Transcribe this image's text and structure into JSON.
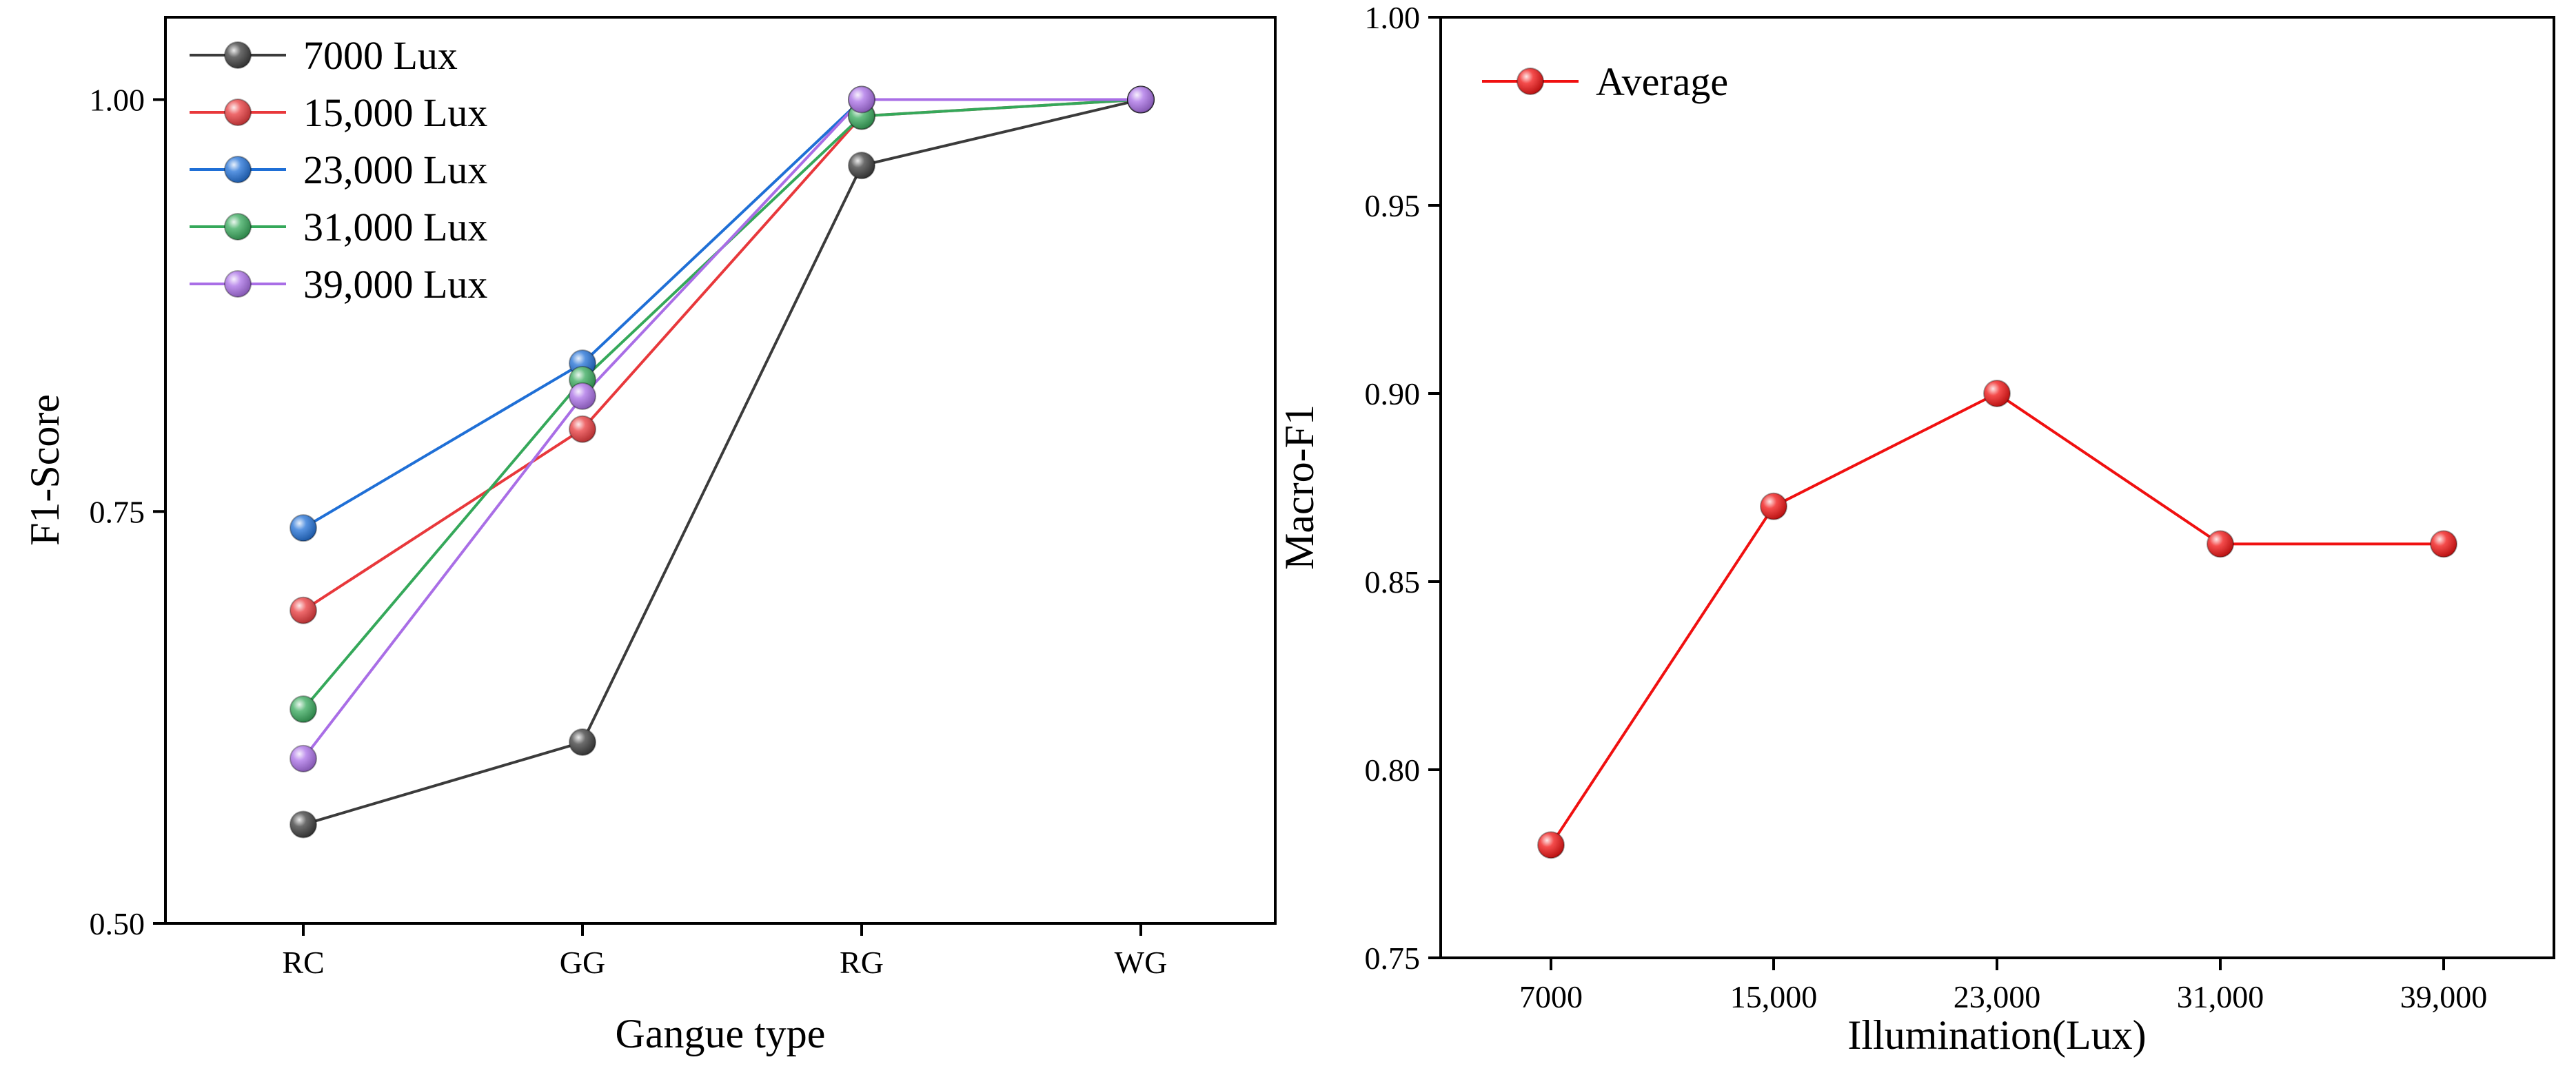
{
  "chart_data": [
    {
      "type": "line",
      "title": "",
      "xlabel": "Gangue type",
      "ylabel": "F1-Score",
      "categories": [
        "RC",
        "GG",
        "RG",
        "WG"
      ],
      "ylim": [
        0.5,
        1.05
      ],
      "yticks": [
        0.5,
        0.75,
        1.0
      ],
      "ytick_labels": [
        "0.50",
        "0.75",
        "1.00"
      ],
      "grid": false,
      "legend_position": "top-left",
      "series": [
        {
          "name": "7000 Lux",
          "color": "#3b3b3b",
          "values": [
            0.56,
            0.61,
            0.96,
            1.0
          ]
        },
        {
          "name": "15,000 Lux",
          "color": "#e8383b",
          "values": [
            0.69,
            0.8,
            0.99,
            1.0
          ]
        },
        {
          "name": "23,000 Lux",
          "color": "#1f6fd6",
          "values": [
            0.74,
            0.84,
            1.0,
            1.0
          ]
        },
        {
          "name": "31,000 Lux",
          "color": "#35a85a",
          "values": [
            0.63,
            0.83,
            0.99,
            1.0
          ]
        },
        {
          "name": "39,000 Lux",
          "color": "#a96ee6",
          "values": [
            0.6,
            0.82,
            1.0,
            1.0
          ]
        }
      ]
    },
    {
      "type": "line",
      "title": "",
      "xlabel": "Illumination(Lux)",
      "ylabel": "Macro-F1",
      "categories": [
        "7000",
        "15,000",
        "23,000",
        "31,000",
        "39,000"
      ],
      "ylim": [
        0.75,
        1.0
      ],
      "yticks": [
        0.75,
        0.8,
        0.85,
        0.9,
        0.95,
        1.0
      ],
      "ytick_labels": [
        "0.75",
        "0.80",
        "0.85",
        "0.90",
        "0.95",
        "1.00"
      ],
      "grid": false,
      "legend_position": "top-left",
      "series": [
        {
          "name": "Average",
          "color": "#f01010",
          "values": [
            0.78,
            0.87,
            0.9,
            0.86,
            0.86
          ]
        }
      ]
    }
  ]
}
